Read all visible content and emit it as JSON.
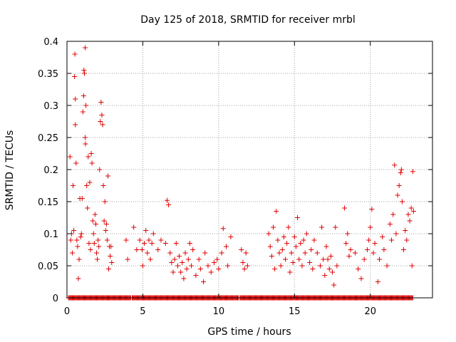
{
  "chart_data": {
    "type": "scatter",
    "title": "Day 125 of 2018, SRMTID for receiver mrbl",
    "xlabel": "GPS time / hours",
    "ylabel": "SRMTID / TECUs",
    "xlim": [
      0,
      24.1
    ],
    "ylim": [
      0,
      0.4
    ],
    "xticks": [
      0,
      5,
      10,
      15,
      20
    ],
    "yticks": [
      0,
      0.05,
      0.1,
      0.15,
      0.2,
      0.25,
      0.3,
      0.35,
      0.4
    ],
    "xtick_labels": [
      "0",
      "5",
      "10",
      "15",
      "20"
    ],
    "ytick_labels": [
      "0",
      "0.05",
      "0.1",
      "0.15",
      "0.2",
      "0.25",
      "0.3",
      "0.35",
      "0.4"
    ],
    "grid": true,
    "marker": "+",
    "color": "#e00000",
    "series": [
      {
        "name": "SRMTID",
        "zero_baseline_ranges": [
          [
            0.1,
            4.2
          ],
          [
            4.3,
            11.3
          ],
          [
            11.4,
            22.8
          ]
        ],
        "points": [
          [
            0.2,
            0.22
          ],
          [
            0.25,
            0.09
          ],
          [
            0.3,
            0.1
          ],
          [
            0.35,
            0.07
          ],
          [
            0.4,
            0.175
          ],
          [
            0.45,
            0.105
          ],
          [
            0.5,
            0.345
          ],
          [
            0.52,
            0.38
          ],
          [
            0.55,
            0.31
          ],
          [
            0.55,
            0.27
          ],
          [
            0.6,
            0.21
          ],
          [
            0.65,
            0.09
          ],
          [
            0.7,
            0.08
          ],
          [
            0.75,
            0.03
          ],
          [
            0.8,
            0.06
          ],
          [
            0.85,
            0.155
          ],
          [
            0.9,
            0.095
          ],
          [
            0.95,
            0.1
          ],
          [
            1.0,
            0.155
          ],
          [
            1.05,
            0.29
          ],
          [
            1.1,
            0.315
          ],
          [
            1.12,
            0.355
          ],
          [
            1.15,
            0.35
          ],
          [
            1.2,
            0.39
          ],
          [
            1.2,
            0.25
          ],
          [
            1.22,
            0.24
          ],
          [
            1.25,
            0.3
          ],
          [
            1.3,
            0.175
          ],
          [
            1.35,
            0.14
          ],
          [
            1.4,
            0.22
          ],
          [
            1.45,
            0.085
          ],
          [
            1.5,
            0.18
          ],
          [
            1.55,
            0.075
          ],
          [
            1.6,
            0.225
          ],
          [
            1.65,
            0.21
          ],
          [
            1.7,
            0.12
          ],
          [
            1.75,
            0.1
          ],
          [
            1.8,
            0.085
          ],
          [
            1.85,
            0.13
          ],
          [
            1.9,
            0.115
          ],
          [
            1.95,
            0.07
          ],
          [
            2.0,
            0.06
          ],
          [
            2.05,
            0.09
          ],
          [
            2.1,
            0.08
          ],
          [
            2.15,
            0.2
          ],
          [
            2.2,
            0.275
          ],
          [
            2.25,
            0.305
          ],
          [
            2.3,
            0.285
          ],
          [
            2.35,
            0.27
          ],
          [
            2.4,
            0.175
          ],
          [
            2.45,
            0.12
          ],
          [
            2.5,
            0.15
          ],
          [
            2.55,
            0.105
          ],
          [
            2.6,
            0.115
          ],
          [
            2.65,
            0.09
          ],
          [
            2.7,
            0.19
          ],
          [
            2.75,
            0.045
          ],
          [
            2.8,
            0.08
          ],
          [
            2.85,
            0.065
          ],
          [
            2.9,
            0.08
          ],
          [
            2.95,
            0.055
          ],
          [
            3.9,
            0.09
          ],
          [
            4.0,
            0.06
          ],
          [
            4.4,
            0.11
          ],
          [
            4.6,
            0.075
          ],
          [
            4.8,
            0.09
          ],
          [
            4.95,
            0.075
          ],
          [
            5.0,
            0.05
          ],
          [
            5.1,
            0.085
          ],
          [
            5.2,
            0.105
          ],
          [
            5.3,
            0.07
          ],
          [
            5.4,
            0.09
          ],
          [
            5.5,
            0.06
          ],
          [
            5.6,
            0.085
          ],
          [
            5.7,
            0.1
          ],
          [
            6.0,
            0.075
          ],
          [
            6.2,
            0.09
          ],
          [
            6.5,
            0.085
          ],
          [
            6.6,
            0.152
          ],
          [
            6.7,
            0.145
          ],
          [
            6.8,
            0.07
          ],
          [
            6.9,
            0.055
          ],
          [
            7.0,
            0.04
          ],
          [
            7.1,
            0.06
          ],
          [
            7.2,
            0.085
          ],
          [
            7.3,
            0.05
          ],
          [
            7.4,
            0.065
          ],
          [
            7.5,
            0.04
          ],
          [
            7.6,
            0.055
          ],
          [
            7.7,
            0.03
          ],
          [
            7.8,
            0.07
          ],
          [
            7.9,
            0.045
          ],
          [
            8.0,
            0.06
          ],
          [
            8.1,
            0.085
          ],
          [
            8.2,
            0.05
          ],
          [
            8.3,
            0.075
          ],
          [
            8.5,
            0.035
          ],
          [
            8.7,
            0.06
          ],
          [
            8.8,
            0.045
          ],
          [
            9.0,
            0.025
          ],
          [
            9.1,
            0.07
          ],
          [
            9.3,
            0.05
          ],
          [
            9.5,
            0.04
          ],
          [
            9.7,
            0.055
          ],
          [
            9.9,
            0.06
          ],
          [
            10.0,
            0.045
          ],
          [
            10.2,
            0.07
          ],
          [
            10.3,
            0.108
          ],
          [
            10.5,
            0.08
          ],
          [
            10.6,
            0.05
          ],
          [
            10.8,
            0.095
          ],
          [
            11.5,
            0.075
          ],
          [
            11.6,
            0.055
          ],
          [
            11.7,
            0.045
          ],
          [
            11.8,
            0.07
          ],
          [
            11.9,
            0.05
          ],
          [
            13.3,
            0.1
          ],
          [
            13.4,
            0.08
          ],
          [
            13.5,
            0.065
          ],
          [
            13.6,
            0.11
          ],
          [
            13.7,
            0.045
          ],
          [
            13.8,
            0.135
          ],
          [
            13.9,
            0.09
          ],
          [
            14.0,
            0.07
          ],
          [
            14.1,
            0.05
          ],
          [
            14.2,
            0.075
          ],
          [
            14.3,
            0.095
          ],
          [
            14.4,
            0.06
          ],
          [
            14.5,
            0.085
          ],
          [
            14.6,
            0.11
          ],
          [
            14.7,
            0.04
          ],
          [
            14.8,
            0.07
          ],
          [
            14.9,
            0.055
          ],
          [
            15.0,
            0.095
          ],
          [
            15.1,
            0.08
          ],
          [
            15.2,
            0.125
          ],
          [
            15.3,
            0.06
          ],
          [
            15.4,
            0.085
          ],
          [
            15.5,
            0.05
          ],
          [
            15.6,
            0.09
          ],
          [
            15.7,
            0.07
          ],
          [
            15.8,
            0.1
          ],
          [
            16.0,
            0.055
          ],
          [
            16.1,
            0.075
          ],
          [
            16.2,
            0.045
          ],
          [
            16.3,
            0.09
          ],
          [
            16.5,
            0.07
          ],
          [
            16.7,
            0.05
          ],
          [
            16.8,
            0.11
          ],
          [
            16.9,
            0.06
          ],
          [
            17.0,
            0.035
          ],
          [
            17.1,
            0.08
          ],
          [
            17.2,
            0.06
          ],
          [
            17.3,
            0.045
          ],
          [
            17.4,
            0.065
          ],
          [
            17.5,
            0.04
          ],
          [
            17.6,
            0.02
          ],
          [
            17.7,
            0.11
          ],
          [
            17.8,
            0.05
          ],
          [
            18.3,
            0.14
          ],
          [
            18.4,
            0.085
          ],
          [
            18.5,
            0.1
          ],
          [
            18.6,
            0.065
          ],
          [
            18.7,
            0.075
          ],
          [
            19.0,
            0.07
          ],
          [
            19.2,
            0.045
          ],
          [
            19.4,
            0.03
          ],
          [
            19.6,
            0.06
          ],
          [
            19.8,
            0.075
          ],
          [
            19.9,
            0.09
          ],
          [
            20.0,
            0.11
          ],
          [
            20.1,
            0.138
          ],
          [
            20.2,
            0.07
          ],
          [
            20.3,
            0.085
          ],
          [
            20.5,
            0.025
          ],
          [
            20.6,
            0.06
          ],
          [
            20.8,
            0.095
          ],
          [
            20.9,
            0.075
          ],
          [
            21.1,
            0.05
          ],
          [
            21.3,
            0.115
          ],
          [
            21.4,
            0.09
          ],
          [
            21.5,
            0.13
          ],
          [
            21.6,
            0.207
          ],
          [
            21.7,
            0.1
          ],
          [
            21.8,
            0.16
          ],
          [
            21.9,
            0.175
          ],
          [
            22.0,
            0.195
          ],
          [
            22.05,
            0.2
          ],
          [
            22.1,
            0.15
          ],
          [
            22.2,
            0.075
          ],
          [
            22.3,
            0.105
          ],
          [
            22.4,
            0.09
          ],
          [
            22.5,
            0.13
          ],
          [
            22.6,
            0.12
          ],
          [
            22.7,
            0.14
          ],
          [
            22.75,
            0.05
          ],
          [
            22.8,
            0.197
          ],
          [
            22.85,
            0.135
          ]
        ]
      }
    ]
  }
}
